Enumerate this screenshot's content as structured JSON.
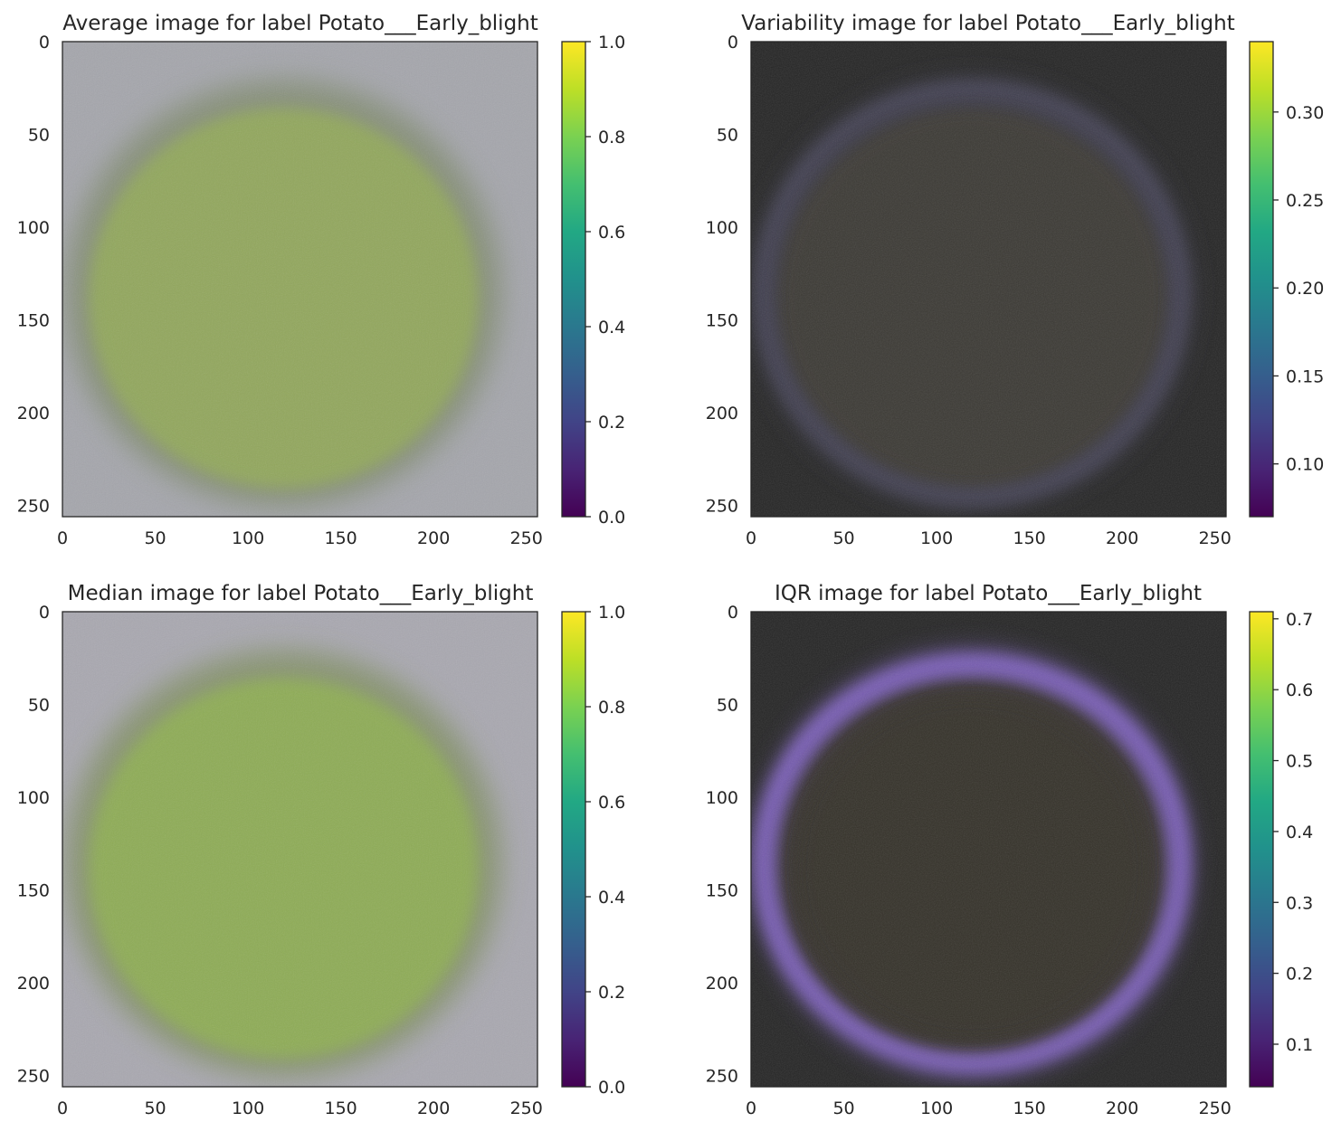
{
  "chart_data": [
    {
      "type": "heatmap",
      "title": "Average image for label Potato___Early_blight",
      "x_ticks": [
        "0",
        "50",
        "100",
        "150",
        "200",
        "250"
      ],
      "y_ticks": [
        "0",
        "50",
        "100",
        "150",
        "200",
        "250"
      ],
      "xlim": [
        0,
        256
      ],
      "ylim": [
        256,
        0
      ],
      "colorbar": {
        "colormap": "viridis",
        "range": [
          0.0,
          1.0
        ],
        "ticks": [
          "0.0",
          "0.2",
          "0.4",
          "0.6",
          "0.8",
          "1.0"
        ],
        "tick_values": [
          0.0,
          0.2,
          0.4,
          0.6,
          0.8,
          1.0
        ]
      },
      "image_colors": {
        "background": "#a5a6ac",
        "center": "#93a95c",
        "edge": "#6f7f52"
      }
    },
    {
      "type": "heatmap",
      "title": "Variability image for label Potato___Early_blight",
      "x_ticks": [
        "0",
        "50",
        "100",
        "150",
        "200",
        "250"
      ],
      "y_ticks": [
        "0",
        "50",
        "100",
        "150",
        "200",
        "250"
      ],
      "xlim": [
        0,
        256
      ],
      "ylim": [
        256,
        0
      ],
      "colorbar": {
        "colormap": "viridis",
        "range": [
          0.07,
          0.34
        ],
        "ticks": [
          "0.10",
          "0.15",
          "0.20",
          "0.25",
          "0.30"
        ],
        "tick_values": [
          0.1,
          0.15,
          0.2,
          0.25,
          0.3
        ]
      },
      "image_colors": {
        "background": "#262626",
        "center": "#3c3b34",
        "edge": "#4b4a5e"
      }
    },
    {
      "type": "heatmap",
      "title": "Median image for label Potato___Early_blight",
      "x_ticks": [
        "0",
        "50",
        "100",
        "150",
        "200",
        "250"
      ],
      "y_ticks": [
        "0",
        "50",
        "100",
        "150",
        "200",
        "250"
      ],
      "xlim": [
        0,
        256
      ],
      "ylim": [
        256,
        0
      ],
      "colorbar": {
        "colormap": "viridis",
        "range": [
          0.0,
          1.0
        ],
        "ticks": [
          "0.0",
          "0.2",
          "0.4",
          "0.6",
          "0.8",
          "1.0"
        ],
        "tick_values": [
          0.0,
          0.2,
          0.4,
          0.6,
          0.8,
          1.0
        ]
      },
      "image_colors": {
        "background": "#a9a8b0",
        "center": "#8fae55",
        "edge": "#6e8440"
      }
    },
    {
      "type": "heatmap",
      "title": "IQR image for label Potato___Early_blight",
      "x_ticks": [
        "0",
        "50",
        "100",
        "150",
        "200",
        "250"
      ],
      "y_ticks": [
        "0",
        "50",
        "100",
        "150",
        "200",
        "250"
      ],
      "xlim": [
        0,
        256
      ],
      "ylim": [
        256,
        0
      ],
      "colorbar": {
        "colormap": "viridis",
        "range": [
          0.04,
          0.71
        ],
        "ticks": [
          "0.1",
          "0.2",
          "0.3",
          "0.4",
          "0.5",
          "0.6",
          "0.7"
        ],
        "tick_values": [
          0.1,
          0.2,
          0.3,
          0.4,
          0.5,
          0.6,
          0.7
        ]
      },
      "image_colors": {
        "background": "#262626",
        "center": "#34302c",
        "edge": "#8a6ad0"
      }
    }
  ]
}
